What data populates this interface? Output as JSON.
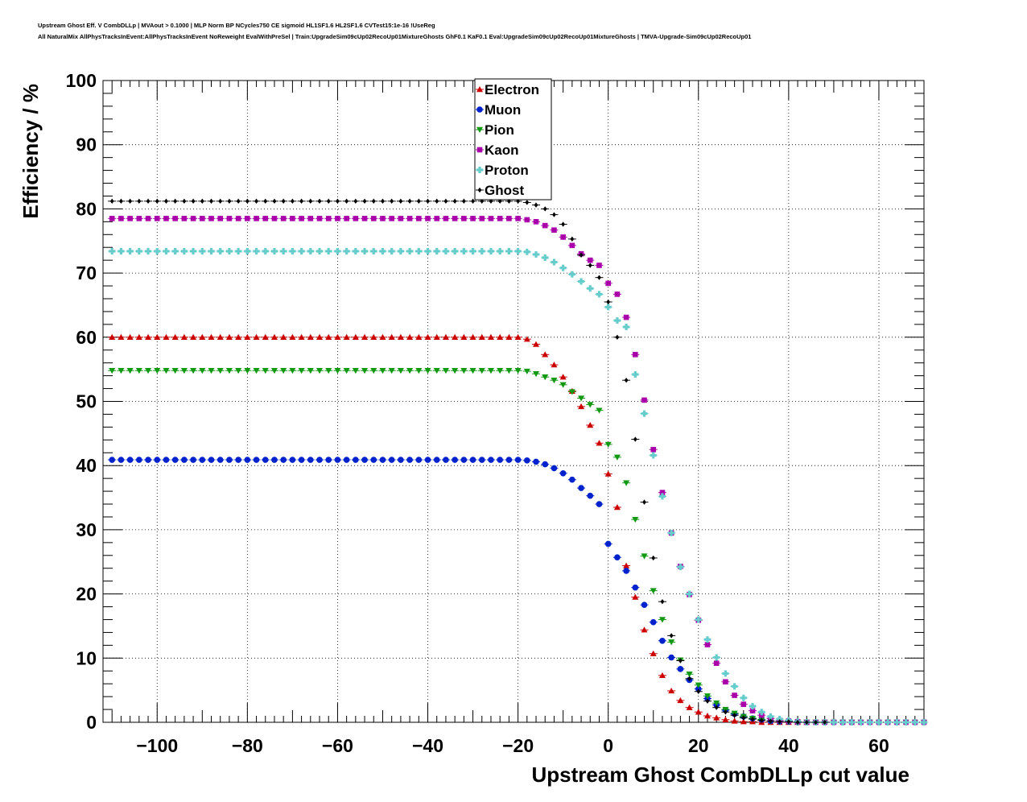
{
  "header": {
    "title_line1": "Upstream Ghost Eff. V CombDLLp | MVAout > 0.1000 | MLP Norm BP NCycles750 CE sigmoid HL1SF1.6 HL2SF1.6 CVTest15:1e-16 !UseReg",
    "title_line2": "All NaturalMix AllPhysTracksInEvent:AllPhysTracksInEvent NoReweight EvalWithPreSel | Train:UpgradeSim09cUp02RecoUp01MixtureGhosts GhF0.1 KaF0.1 Eval:UpgradeSim09cUp02RecoUp01MixtureGhosts | TMVA-Upgrade-Sim09cUp02RecoUp01"
  },
  "chart_data": {
    "type": "scatter",
    "xlabel": "Upstream Ghost CombDLLp cut value",
    "ylabel": "Efficiency / %",
    "xlim": [
      -112,
      70
    ],
    "ylim": [
      0,
      100
    ],
    "x_ticks": [
      -100,
      -80,
      -60,
      -40,
      -20,
      0,
      20,
      40,
      60
    ],
    "x_tick_labels": [
      "−100",
      "−80",
      "−60",
      "−40",
      "−20",
      "0",
      "20",
      "40",
      "60"
    ],
    "y_ticks": [
      0,
      10,
      20,
      30,
      40,
      50,
      60,
      70,
      80,
      90,
      100
    ],
    "y_tick_labels": [
      "0",
      "10",
      "20",
      "30",
      "40",
      "50",
      "60",
      "70",
      "80",
      "90",
      "100"
    ],
    "grid": true,
    "legend_position": "top-center",
    "x_range": [
      -110,
      70
    ],
    "x_step": 2,
    "series": [
      {
        "name": "Electron",
        "color": "#cc0000",
        "marker": "triangle-up",
        "plateau": 60.0,
        "plateau_end": -20,
        "tail": [
          [
            -18,
            59.7
          ],
          [
            -16,
            58.9
          ],
          [
            -14,
            57.3
          ],
          [
            -12,
            55.7
          ],
          [
            -10,
            53.8
          ],
          [
            -8,
            51.6
          ],
          [
            -6,
            49.2
          ],
          [
            -4,
            46.3
          ],
          [
            -2,
            43.5
          ],
          [
            0,
            38.7
          ],
          [
            2,
            33.5
          ],
          [
            4,
            24.4
          ],
          [
            6,
            19.5
          ],
          [
            8,
            14.4
          ],
          [
            10,
            10.7
          ],
          [
            12,
            7.3
          ],
          [
            14,
            4.9
          ],
          [
            16,
            3.4
          ],
          [
            18,
            2.3
          ],
          [
            20,
            1.6
          ],
          [
            22,
            1.0
          ],
          [
            24,
            0.7
          ],
          [
            26,
            0.4
          ],
          [
            28,
            0.2
          ],
          [
            30,
            0.1
          ],
          [
            32,
            0.1
          ],
          [
            34,
            0.0
          ],
          [
            36,
            0.0
          ],
          [
            38,
            0.0
          ],
          [
            40,
            0.0
          ],
          [
            42,
            0.0
          ],
          [
            44,
            0.0
          ]
        ]
      },
      {
        "name": "Muon",
        "color": "#0022cc",
        "marker": "circle",
        "plateau": 40.9,
        "plateau_end": -20,
        "tail": [
          [
            -18,
            40.8
          ],
          [
            -16,
            40.6
          ],
          [
            -14,
            40.2
          ],
          [
            -12,
            39.6
          ],
          [
            -10,
            38.8
          ],
          [
            -8,
            37.8
          ],
          [
            -6,
            36.5
          ],
          [
            -4,
            35.3
          ],
          [
            -2,
            34.0
          ],
          [
            0,
            27.8
          ],
          [
            2,
            25.7
          ],
          [
            4,
            23.6
          ],
          [
            6,
            21.0
          ],
          [
            8,
            18.3
          ],
          [
            10,
            15.6
          ],
          [
            12,
            12.7
          ],
          [
            14,
            10.1
          ],
          [
            16,
            8.3
          ],
          [
            18,
            6.6
          ],
          [
            20,
            5.2
          ],
          [
            22,
            3.7
          ],
          [
            24,
            2.7
          ],
          [
            26,
            1.9
          ],
          [
            28,
            1.3
          ],
          [
            30,
            0.9
          ],
          [
            32,
            0.6
          ],
          [
            34,
            0.4
          ],
          [
            36,
            0.2
          ],
          [
            38,
            0.1
          ],
          [
            40,
            0.1
          ],
          [
            42,
            0.0
          ],
          [
            44,
            0.0
          ],
          [
            46,
            0.0
          ],
          [
            48,
            0.0
          ],
          [
            50,
            0.0
          ],
          [
            52,
            0.0
          ],
          [
            54,
            0.0
          ]
        ]
      },
      {
        "name": "Pion",
        "color": "#119911",
        "marker": "triangle-down",
        "plateau": 54.8,
        "plateau_end": -20,
        "tail": [
          [
            -18,
            54.7
          ],
          [
            -16,
            54.3
          ],
          [
            -14,
            53.8
          ],
          [
            -12,
            53.3
          ],
          [
            -10,
            52.6
          ],
          [
            -8,
            51.5
          ],
          [
            -6,
            50.5
          ],
          [
            -4,
            49.5
          ],
          [
            -2,
            48.6
          ],
          [
            0,
            43.3
          ],
          [
            2,
            41.3
          ],
          [
            4,
            37.3
          ],
          [
            6,
            31.6
          ],
          [
            8,
            25.9
          ],
          [
            10,
            20.5
          ],
          [
            12,
            16.0
          ],
          [
            14,
            12.5
          ],
          [
            16,
            9.7
          ],
          [
            18,
            7.5
          ],
          [
            20,
            5.8
          ],
          [
            22,
            4.1
          ],
          [
            24,
            3.0
          ],
          [
            26,
            2.0
          ],
          [
            28,
            1.4
          ],
          [
            30,
            0.9
          ],
          [
            32,
            0.6
          ],
          [
            34,
            0.4
          ],
          [
            36,
            0.2
          ],
          [
            38,
            0.1
          ],
          [
            40,
            0.1
          ],
          [
            42,
            0.0
          ],
          [
            44,
            0.0
          ],
          [
            46,
            0.0
          ],
          [
            48,
            0.0
          ],
          [
            50,
            0.0
          ],
          [
            52,
            0.0
          ],
          [
            54,
            0.0
          ],
          [
            56,
            0.0
          ],
          [
            58,
            0.0
          ],
          [
            60,
            0.0
          ],
          [
            62,
            0.0
          ],
          [
            64,
            0.0
          ],
          [
            66,
            0.0
          ],
          [
            68,
            0.0
          ],
          [
            70,
            0.0
          ]
        ]
      },
      {
        "name": "Kaon",
        "color": "#aa00aa",
        "marker": "square",
        "plateau": 78.5,
        "plateau_end": -20,
        "tail": [
          [
            -18,
            78.3
          ],
          [
            -16,
            78.0
          ],
          [
            -14,
            77.4
          ],
          [
            -12,
            76.7
          ],
          [
            -10,
            75.6
          ],
          [
            -8,
            74.3
          ],
          [
            -6,
            73.0
          ],
          [
            -4,
            72.0
          ],
          [
            -2,
            71.2
          ],
          [
            0,
            68.4
          ],
          [
            2,
            66.7
          ],
          [
            4,
            63.1
          ],
          [
            6,
            57.3
          ],
          [
            8,
            50.2
          ],
          [
            10,
            42.5
          ],
          [
            12,
            35.8
          ],
          [
            14,
            29.5
          ],
          [
            16,
            24.3
          ],
          [
            18,
            19.9
          ],
          [
            20,
            15.9
          ],
          [
            22,
            12.1
          ],
          [
            24,
            9.2
          ],
          [
            26,
            6.3
          ],
          [
            28,
            4.2
          ],
          [
            30,
            2.8
          ],
          [
            32,
            1.8
          ],
          [
            34,
            1.1
          ],
          [
            36,
            0.6
          ],
          [
            38,
            0.3
          ],
          [
            40,
            0.2
          ],
          [
            42,
            0.1
          ],
          [
            44,
            0.0
          ],
          [
            46,
            0.0
          ],
          [
            48,
            0.0
          ],
          [
            50,
            0.0
          ],
          [
            52,
            0.0
          ],
          [
            54,
            0.0
          ],
          [
            56,
            0.0
          ],
          [
            58,
            0.0
          ],
          [
            60,
            0.0
          ],
          [
            62,
            0.0
          ],
          [
            64,
            0.0
          ],
          [
            66,
            0.0
          ],
          [
            68,
            0.0
          ],
          [
            70,
            0.0
          ]
        ]
      },
      {
        "name": "Proton",
        "color": "#66cccc",
        "marker": "cross",
        "plateau": 73.4,
        "plateau_end": -20,
        "tail": [
          [
            -18,
            73.3
          ],
          [
            -16,
            72.9
          ],
          [
            -14,
            72.4
          ],
          [
            -12,
            71.7
          ],
          [
            -10,
            70.8
          ],
          [
            -8,
            69.8
          ],
          [
            -6,
            68.7
          ],
          [
            -4,
            67.6
          ],
          [
            -2,
            66.7
          ],
          [
            0,
            64.7
          ],
          [
            2,
            62.6
          ],
          [
            4,
            61.6
          ],
          [
            6,
            54.2
          ],
          [
            8,
            48.1
          ],
          [
            10,
            41.6
          ],
          [
            12,
            35.2
          ],
          [
            14,
            29.5
          ],
          [
            16,
            24.2
          ],
          [
            18,
            20.0
          ],
          [
            20,
            16.0
          ],
          [
            22,
            12.9
          ],
          [
            24,
            10.1
          ],
          [
            26,
            7.6
          ],
          [
            28,
            5.6
          ],
          [
            30,
            3.8
          ],
          [
            32,
            2.5
          ],
          [
            34,
            1.6
          ],
          [
            36,
            0.9
          ],
          [
            38,
            0.5
          ],
          [
            40,
            0.3
          ],
          [
            42,
            0.1
          ],
          [
            44,
            0.0
          ],
          [
            46,
            0.0
          ],
          [
            48,
            0.0
          ],
          [
            50,
            0.0
          ],
          [
            52,
            0.0
          ],
          [
            54,
            0.0
          ],
          [
            56,
            0.0
          ],
          [
            58,
            0.0
          ],
          [
            60,
            0.0
          ],
          [
            62,
            0.0
          ],
          [
            64,
            0.0
          ],
          [
            66,
            0.0
          ],
          [
            68,
            0.0
          ],
          [
            70,
            0.0
          ]
        ]
      },
      {
        "name": "Ghost",
        "color": "#000000",
        "marker": "diamond",
        "plateau": 81.2,
        "plateau_end": -20,
        "tail": [
          [
            -18,
            81.0
          ],
          [
            -16,
            80.6
          ],
          [
            -14,
            80.0
          ],
          [
            -12,
            79.1
          ],
          [
            -10,
            77.6
          ],
          [
            -8,
            75.3
          ],
          [
            -6,
            72.8
          ],
          [
            -4,
            71.2
          ],
          [
            -2,
            69.3
          ],
          [
            0,
            65.5
          ],
          [
            2,
            60.0
          ],
          [
            4,
            53.3
          ],
          [
            6,
            44.1
          ],
          [
            8,
            34.3
          ],
          [
            10,
            25.6
          ],
          [
            12,
            18.8
          ],
          [
            14,
            13.5
          ],
          [
            16,
            9.6
          ],
          [
            18,
            6.8
          ],
          [
            20,
            4.8
          ],
          [
            22,
            3.3
          ],
          [
            24,
            2.3
          ],
          [
            26,
            1.6
          ],
          [
            28,
            1.1
          ],
          [
            30,
            0.7
          ],
          [
            32,
            0.5
          ],
          [
            34,
            0.3
          ],
          [
            36,
            0.2
          ],
          [
            38,
            0.1
          ],
          [
            40,
            0.1
          ],
          [
            42,
            0.0
          ],
          [
            44,
            0.0
          ],
          [
            46,
            0.0
          ],
          [
            48,
            0.0
          ]
        ]
      }
    ]
  }
}
